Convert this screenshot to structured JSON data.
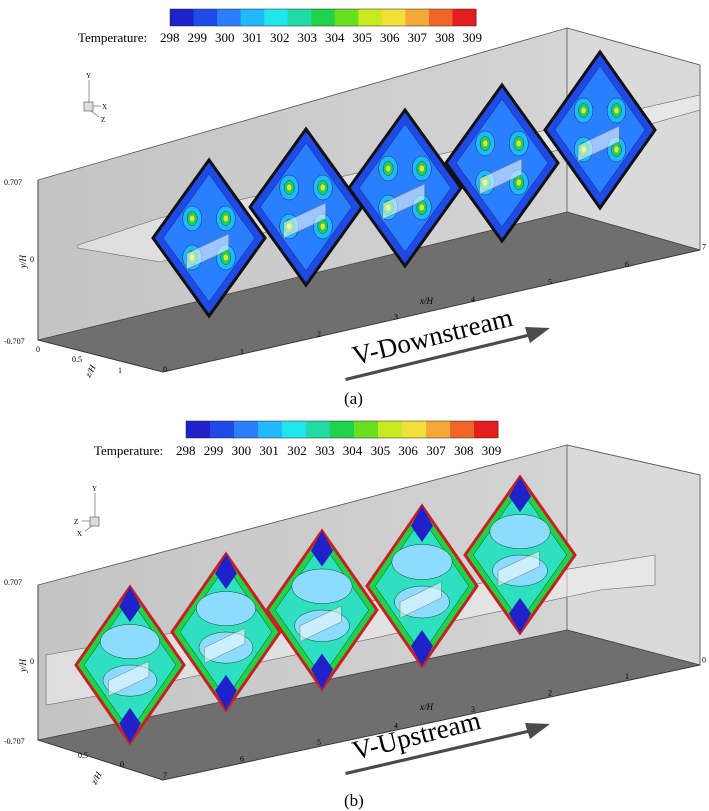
{
  "panels": [
    {
      "id": "a",
      "caption": "(a)",
      "colorbar": {
        "label": "Temperature:",
        "ticks": [
          "298",
          "299",
          "300",
          "301",
          "302",
          "303",
          "304",
          "305",
          "306",
          "307",
          "308",
          "309"
        ],
        "colors": [
          "#1e22c8",
          "#1f4ae8",
          "#2a7fff",
          "#20b8ff",
          "#1ee6ea",
          "#20d9a4",
          "#1fd24a",
          "#68e020",
          "#c8ea1e",
          "#f2e03a",
          "#f3a838",
          "#ef6428",
          "#e41e1e"
        ]
      },
      "triad": {
        "up": "Y",
        "right": "X",
        "down": "Z"
      },
      "y_axis": {
        "label": "y/H",
        "ticks": [
          "0.707",
          "0",
          "-0.707"
        ]
      },
      "z_axis": {
        "label": "z/H",
        "ticks": [
          "0",
          "0.5",
          "1"
        ]
      },
      "x_axis": {
        "label": "x/H",
        "ticks": [
          "0",
          "1",
          "2",
          "3",
          "4",
          "5",
          "6",
          "7"
        ]
      },
      "flow_label": "V-Downstream"
    },
    {
      "id": "b",
      "caption": "(b)",
      "colorbar": {
        "label": "Temperature:",
        "ticks": [
          "298",
          "299",
          "300",
          "301",
          "302",
          "303",
          "304",
          "305",
          "306",
          "307",
          "308",
          "309"
        ],
        "colors": [
          "#1e22c8",
          "#1f4ae8",
          "#2a7fff",
          "#20b8ff",
          "#1ee6ea",
          "#20d9a4",
          "#1fd24a",
          "#68e020",
          "#c8ea1e",
          "#f2e03a",
          "#f3a838",
          "#ef6428",
          "#e41e1e"
        ]
      },
      "triad": {
        "up": "Y",
        "right": "Z",
        "down": "X"
      },
      "y_axis": {
        "label": "y/H",
        "ticks": [
          "0.707",
          "0",
          "-0.707"
        ]
      },
      "z_axis": {
        "label": "z/H",
        "ticks": [
          "0",
          "0.5"
        ]
      },
      "x_axis": {
        "label": "x/H",
        "ticks": [
          "7",
          "6",
          "5",
          "4",
          "3",
          "2",
          "1",
          "0"
        ]
      },
      "flow_label": "V-Upstream"
    }
  ]
}
